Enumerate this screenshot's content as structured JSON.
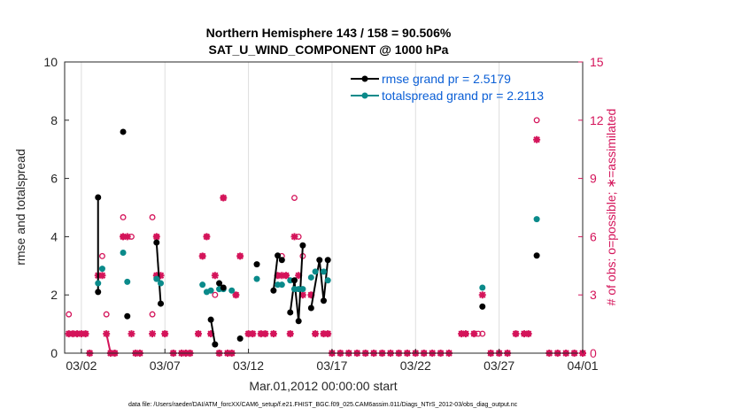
{
  "chart_data": {
    "type": "line",
    "title_line1": "Northern Hemisphere 143 / 158 = 90.506%",
    "title_line2": "SAT_U_WIND_COMPONENT @ 1000 hPa",
    "xlabel": "Mar.01,2012 00:00:00 start",
    "ylabel_left": "rmse and totalspread",
    "ylabel_right": "# of obs: o=possible; ∗=assimilated",
    "xlim": [
      0,
      31
    ],
    "ylim_left": [
      0,
      10
    ],
    "ylim_right": [
      0,
      15
    ],
    "x_ticks": [
      1,
      6,
      11,
      16,
      21,
      26,
      31
    ],
    "x_tick_labels": [
      "03/02",
      "03/07",
      "03/12",
      "03/17",
      "03/22",
      "03/27",
      "04/01"
    ],
    "y_ticks_left": [
      0,
      2,
      4,
      6,
      8,
      10
    ],
    "y_ticks_right": [
      0,
      3,
      6,
      9,
      12,
      15
    ],
    "colors": {
      "rmse": "#000000",
      "spread": "#0a8a8a",
      "obs": "#d4145a",
      "legend_text": "#0b5fd6",
      "grid": "#dedede"
    },
    "series": [
      {
        "name": "rmse",
        "legend": "rmse grand pr = 2.5179",
        "values": [
          [
            2.0,
            2.1
          ],
          [
            2.0,
            5.35
          ],
          [
            3.5,
            7.6
          ],
          [
            3.75,
            1.27
          ],
          [
            5.5,
            3.8
          ],
          [
            5.75,
            1.7
          ],
          [
            8.75,
            1.15
          ],
          [
            9.0,
            0.3
          ],
          [
            9.25,
            2.4
          ],
          [
            9.5,
            2.25
          ],
          [
            10.5,
            0.5
          ],
          [
            11.5,
            3.05
          ],
          [
            12.5,
            2.15
          ],
          [
            12.75,
            3.35
          ],
          [
            13.0,
            3.2
          ],
          [
            13.5,
            1.4
          ],
          [
            13.75,
            2.5
          ],
          [
            14.0,
            1.1
          ],
          [
            14.25,
            3.7
          ],
          [
            14.75,
            1.55
          ],
          [
            15.25,
            3.2
          ],
          [
            15.5,
            1.8
          ],
          [
            15.75,
            3.2
          ],
          [
            25.0,
            1.6
          ],
          [
            28.25,
            3.35
          ]
        ]
      },
      {
        "name": "totalspread",
        "legend": "totalspread grand pr = 2.2113",
        "values": [
          [
            2.0,
            2.4
          ],
          [
            2.25,
            2.9
          ],
          [
            3.5,
            3.45
          ],
          [
            3.75,
            2.45
          ],
          [
            5.5,
            2.55
          ],
          [
            5.75,
            2.4
          ],
          [
            8.25,
            2.35
          ],
          [
            8.5,
            2.1
          ],
          [
            8.75,
            2.15
          ],
          [
            9.25,
            2.2
          ],
          [
            9.5,
            2.2
          ],
          [
            10.0,
            2.15
          ],
          [
            11.5,
            2.55
          ],
          [
            12.75,
            2.35
          ],
          [
            13.0,
            2.35
          ],
          [
            13.5,
            2.5
          ],
          [
            13.75,
            2.2
          ],
          [
            14.0,
            2.2
          ],
          [
            14.25,
            2.2
          ],
          [
            14.75,
            2.6
          ],
          [
            15.0,
            2.8
          ],
          [
            15.5,
            2.8
          ],
          [
            15.75,
            2.5
          ],
          [
            25.0,
            2.25
          ],
          [
            28.25,
            4.6
          ]
        ]
      },
      {
        "name": "obs_possible",
        "values": [
          [
            0.25,
            2
          ],
          [
            0.25,
            1
          ],
          [
            0.5,
            1
          ],
          [
            0.75,
            1
          ],
          [
            1.0,
            1
          ],
          [
            1.25,
            1
          ],
          [
            1.5,
            0
          ],
          [
            2.25,
            5
          ],
          [
            2.5,
            2
          ],
          [
            2.75,
            0
          ],
          [
            3.0,
            0
          ],
          [
            3.5,
            7
          ],
          [
            3.5,
            6
          ],
          [
            4.0,
            6
          ],
          [
            4.25,
            0
          ],
          [
            4.5,
            0
          ],
          [
            5.25,
            2
          ],
          [
            5.25,
            7
          ],
          [
            5.5,
            6
          ],
          [
            5.5,
            4
          ],
          [
            6.0,
            1
          ],
          [
            6.5,
            0
          ],
          [
            7.0,
            0
          ],
          [
            7.25,
            0
          ],
          [
            7.5,
            0
          ],
          [
            8.0,
            1
          ],
          [
            8.25,
            5
          ],
          [
            8.5,
            6
          ],
          [
            8.75,
            1
          ],
          [
            9.0,
            3
          ],
          [
            9.25,
            0
          ],
          [
            9.5,
            8
          ],
          [
            9.75,
            0
          ],
          [
            10.0,
            0
          ],
          [
            10.25,
            3
          ],
          [
            10.5,
            5
          ],
          [
            11.0,
            1
          ],
          [
            11.25,
            1
          ],
          [
            11.75,
            1
          ],
          [
            12.0,
            1
          ],
          [
            12.5,
            1
          ],
          [
            12.75,
            4
          ],
          [
            13.0,
            5
          ],
          [
            13.25,
            4
          ],
          [
            13.5,
            1
          ],
          [
            13.75,
            8
          ],
          [
            14.0,
            6
          ],
          [
            14.25,
            5
          ],
          [
            14.75,
            3
          ],
          [
            15.0,
            1
          ],
          [
            15.5,
            1
          ],
          [
            15.75,
            1
          ],
          [
            16.0,
            0
          ],
          [
            16.5,
            0
          ],
          [
            17.0,
            0
          ],
          [
            17.5,
            0
          ],
          [
            18.0,
            0
          ],
          [
            18.5,
            0
          ],
          [
            19.0,
            0
          ],
          [
            19.5,
            0
          ],
          [
            20.0,
            0
          ],
          [
            20.5,
            0
          ],
          [
            21.0,
            0
          ],
          [
            21.5,
            0
          ],
          [
            22.0,
            0
          ],
          [
            22.5,
            0
          ],
          [
            23.0,
            0
          ],
          [
            23.75,
            1
          ],
          [
            24.0,
            1
          ],
          [
            24.5,
            1
          ],
          [
            24.75,
            1
          ],
          [
            25.0,
            1
          ],
          [
            25.5,
            0
          ],
          [
            26.0,
            0
          ],
          [
            26.5,
            0
          ],
          [
            27.0,
            1
          ],
          [
            27.5,
            1
          ],
          [
            27.75,
            1
          ],
          [
            28.25,
            12
          ],
          [
            29.0,
            0
          ],
          [
            29.5,
            0
          ],
          [
            30.0,
            0
          ],
          [
            30.5,
            0
          ],
          [
            31.0,
            0
          ]
        ]
      },
      {
        "name": "obs_assimilated",
        "values": [
          [
            0.25,
            1
          ],
          [
            0.5,
            1
          ],
          [
            0.75,
            1
          ],
          [
            1.0,
            1
          ],
          [
            1.25,
            1
          ],
          [
            1.5,
            0
          ],
          [
            2.0,
            4
          ],
          [
            2.25,
            4
          ],
          [
            2.5,
            1
          ],
          [
            2.75,
            0
          ],
          [
            3.0,
            0
          ],
          [
            3.5,
            6
          ],
          [
            3.75,
            6
          ],
          [
            4.0,
            1
          ],
          [
            4.25,
            0
          ],
          [
            4.5,
            0
          ],
          [
            5.25,
            1
          ],
          [
            5.5,
            6
          ],
          [
            5.5,
            4
          ],
          [
            5.75,
            4
          ],
          [
            6.0,
            1
          ],
          [
            6.5,
            0
          ],
          [
            7.0,
            0
          ],
          [
            7.25,
            0
          ],
          [
            7.5,
            0
          ],
          [
            8.0,
            1
          ],
          [
            8.25,
            5
          ],
          [
            8.5,
            6
          ],
          [
            8.75,
            1
          ],
          [
            9.0,
            4
          ],
          [
            9.25,
            0
          ],
          [
            9.5,
            8
          ],
          [
            9.75,
            0
          ],
          [
            10.0,
            0
          ],
          [
            10.25,
            3
          ],
          [
            10.5,
            5
          ],
          [
            11.0,
            1
          ],
          [
            11.25,
            1
          ],
          [
            11.75,
            1
          ],
          [
            12.0,
            1
          ],
          [
            12.5,
            1
          ],
          [
            12.75,
            4
          ],
          [
            13.0,
            4
          ],
          [
            13.25,
            4
          ],
          [
            13.5,
            1
          ],
          [
            13.75,
            6
          ],
          [
            14.0,
            4
          ],
          [
            14.25,
            3
          ],
          [
            14.75,
            3
          ],
          [
            15.0,
            1
          ],
          [
            15.5,
            1
          ],
          [
            15.75,
            1
          ],
          [
            16.0,
            0
          ],
          [
            16.5,
            0
          ],
          [
            17.0,
            0
          ],
          [
            17.5,
            0
          ],
          [
            18.0,
            0
          ],
          [
            18.5,
            0
          ],
          [
            19.0,
            0
          ],
          [
            19.5,
            0
          ],
          [
            20.0,
            0
          ],
          [
            20.5,
            0
          ],
          [
            21.0,
            0
          ],
          [
            21.5,
            0
          ],
          [
            22.0,
            0
          ],
          [
            22.5,
            0
          ],
          [
            23.0,
            0
          ],
          [
            23.75,
            1
          ],
          [
            24.0,
            1
          ],
          [
            24.5,
            1
          ],
          [
            25.0,
            3
          ],
          [
            25.5,
            0
          ],
          [
            26.0,
            0
          ],
          [
            26.5,
            0
          ],
          [
            27.0,
            1
          ],
          [
            27.5,
            1
          ],
          [
            27.75,
            1
          ],
          [
            28.25,
            11
          ],
          [
            29.0,
            0
          ],
          [
            29.5,
            0
          ],
          [
            30.0,
            0
          ],
          [
            30.5,
            0
          ],
          [
            31.0,
            0
          ]
        ]
      }
    ],
    "rmse_line_pairs": [
      [
        0,
        1
      ],
      [
        4,
        5
      ],
      [
        6,
        7
      ],
      [
        8,
        9
      ],
      [
        12,
        13
      ],
      [
        13,
        14
      ],
      [
        15,
        16
      ],
      [
        16,
        17
      ],
      [
        17,
        18
      ],
      [
        19,
        20
      ],
      [
        20,
        21
      ],
      [
        21,
        22
      ]
    ],
    "obs_line_pairs": [
      [
        0,
        1
      ],
      [
        3,
        4
      ],
      [
        6,
        7
      ],
      [
        8,
        9
      ]
    ]
  },
  "footer": "data file: /Users/raeder/DAI/ATM_forcXX/CAM6_setup/f.e21.FHIST_BGC.f09_025.CAM6assim.011/Diags_NTrS_2012-03/obs_diag_output.nc"
}
